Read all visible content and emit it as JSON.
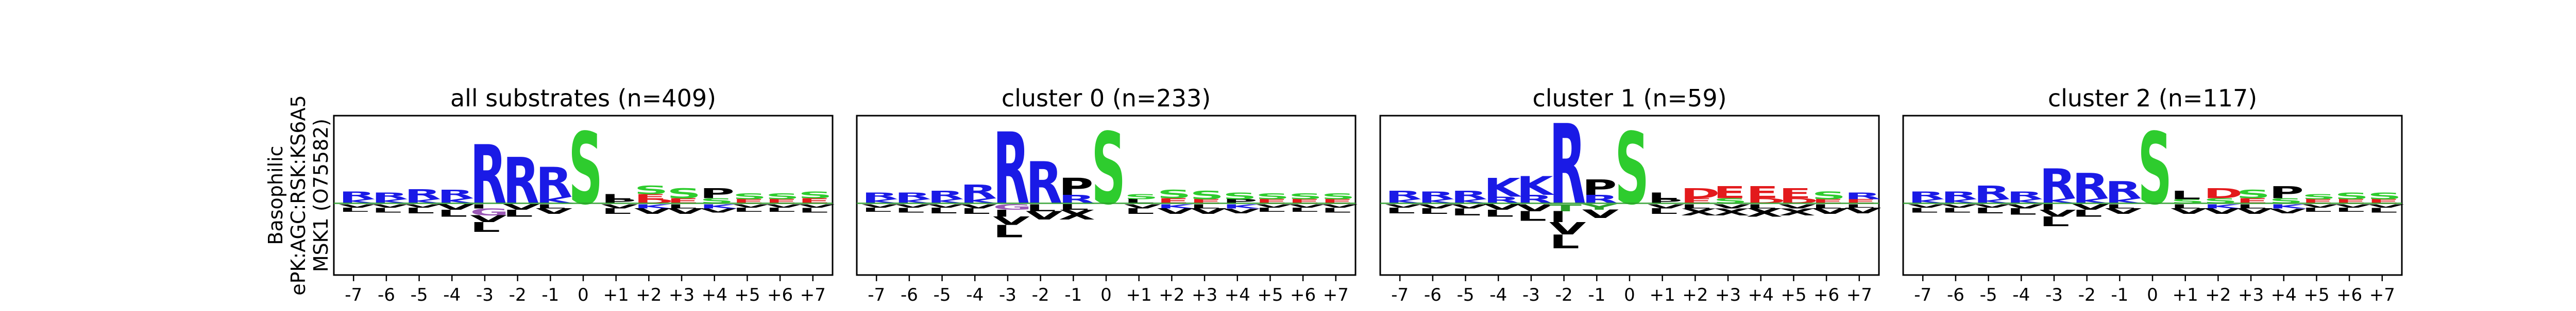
{
  "figure": {
    "row_label": [
      "Basophilic",
      "ePK:AGC:RSK:KS6A5",
      "MSK1 (O75582)"
    ]
  },
  "colors": {
    "basic": "#1a1ae6",
    "acidic": "#e31a1c",
    "polar": "#2ca02c",
    "ser": "#2ecc2e",
    "hydrophobic": "#000000",
    "gly": "#9b59b6",
    "amide": "#8e44ad",
    "baseline": "#2ca02c"
  },
  "chart_data": [
    {
      "type": "sequence-logo",
      "title": "all substrates (n=409)",
      "positions": [
        "-7",
        "-6",
        "-5",
        "-4",
        "-3",
        "-2",
        "-1",
        "0",
        "+1",
        "+2",
        "+3",
        "+4",
        "+5",
        "+6",
        "+7"
      ],
      "ylim": [
        -1.0,
        1.0
      ],
      "top": [
        [
          [
            "R",
            0.09
          ],
          [
            "K",
            0.05
          ]
        ],
        [
          [
            "R",
            0.08
          ],
          [
            "K",
            0.05
          ]
        ],
        [
          [
            "R",
            0.12
          ],
          [
            "K",
            0.05
          ]
        ],
        [
          [
            "R",
            0.1
          ],
          [
            "K",
            0.06
          ]
        ],
        [
          [
            "R",
            0.7
          ]
        ],
        [
          [
            "R",
            0.55
          ]
        ],
        [
          [
            "R",
            0.35
          ],
          [
            "K",
            0.08
          ]
        ],
        [
          [
            "S",
            0.85
          ]
        ],
        [
          [
            "L",
            0.06
          ],
          [
            "P",
            0.05
          ]
        ],
        [
          [
            "S",
            0.1
          ],
          [
            "E",
            0.06
          ],
          [
            "D",
            0.05
          ]
        ],
        [
          [
            "S",
            0.12
          ],
          [
            "E",
            0.06
          ]
        ],
        [
          [
            "P",
            0.12
          ],
          [
            "S",
            0.06
          ]
        ],
        [
          [
            "S",
            0.07
          ],
          [
            "E",
            0.05
          ]
        ],
        [
          [
            "S",
            0.07
          ],
          [
            "E",
            0.05
          ]
        ],
        [
          [
            "S",
            0.08
          ],
          [
            "E",
            0.06
          ]
        ]
      ],
      "bottom": [
        [
          [
            "L",
            0.06
          ],
          [
            "V",
            0.05
          ]
        ],
        [
          [
            "L",
            0.07
          ],
          [
            "V",
            0.05
          ]
        ],
        [
          [
            "L",
            0.08
          ],
          [
            "V",
            0.05
          ]
        ],
        [
          [
            "L",
            0.1
          ],
          [
            "V",
            0.08
          ]
        ],
        [
          [
            "G",
            0.1
          ],
          [
            "L",
            0.14
          ],
          [
            "V",
            0.1
          ],
          [
            "I",
            0.06
          ]
        ],
        [
          [
            "L",
            0.1
          ],
          [
            "V",
            0.08
          ]
        ],
        [
          [
            "V",
            0.08
          ],
          [
            "L",
            0.06
          ]
        ],
        [],
        [
          [
            "L",
            0.08
          ],
          [
            "V",
            0.06
          ]
        ],
        [
          [
            "V",
            0.08
          ],
          [
            "K",
            0.06
          ]
        ],
        [
          [
            "V",
            0.08
          ],
          [
            "L",
            0.06
          ]
        ],
        [
          [
            "K",
            0.06
          ],
          [
            "V",
            0.06
          ]
        ],
        [
          [
            "L",
            0.06
          ],
          [
            "V",
            0.05
          ]
        ],
        [
          [
            "L",
            0.06
          ],
          [
            "V",
            0.05
          ]
        ],
        [
          [
            "L",
            0.07
          ],
          [
            "V",
            0.05
          ]
        ]
      ]
    },
    {
      "type": "sequence-logo",
      "title": "cluster 0 (n=233)",
      "positions": [
        "-7",
        "-6",
        "-5",
        "-4",
        "-3",
        "-2",
        "-1",
        "0",
        "+1",
        "+2",
        "+3",
        "+4",
        "+5",
        "+6",
        "+7"
      ],
      "ylim": [
        -1.0,
        1.0
      ],
      "top": [
        [
          [
            "R",
            0.08
          ],
          [
            "K",
            0.05
          ]
        ],
        [
          [
            "R",
            0.08
          ],
          [
            "K",
            0.05
          ]
        ],
        [
          [
            "R",
            0.1
          ],
          [
            "K",
            0.05
          ]
        ],
        [
          [
            "R",
            0.16
          ],
          [
            "K",
            0.06
          ]
        ],
        [
          [
            "R",
            0.85
          ]
        ],
        [
          [
            "R",
            0.5
          ]
        ],
        [
          [
            "P",
            0.2
          ],
          [
            "R",
            0.1
          ]
        ],
        [
          [
            "S",
            0.85
          ]
        ],
        [
          [
            "S",
            0.06
          ],
          [
            "L",
            0.05
          ]
        ],
        [
          [
            "S",
            0.1
          ],
          [
            "E",
            0.06
          ]
        ],
        [
          [
            "S",
            0.1
          ],
          [
            "E",
            0.05
          ]
        ],
        [
          [
            "S",
            0.08
          ],
          [
            "P",
            0.05
          ]
        ],
        [
          [
            "S",
            0.07
          ],
          [
            "E",
            0.05
          ]
        ],
        [
          [
            "S",
            0.07
          ],
          [
            "E",
            0.05
          ]
        ],
        [
          [
            "S",
            0.07
          ],
          [
            "E",
            0.05
          ]
        ]
      ],
      "bottom": [
        [
          [
            "L",
            0.06
          ],
          [
            "V",
            0.05
          ]
        ],
        [
          [
            "L",
            0.07
          ],
          [
            "V",
            0.05
          ]
        ],
        [
          [
            "L",
            0.08
          ],
          [
            "V",
            0.05
          ]
        ],
        [
          [
            "L",
            0.08
          ],
          [
            "V",
            0.06
          ]
        ],
        [
          [
            "L",
            0.18
          ],
          [
            "V",
            0.12
          ],
          [
            "I",
            0.1
          ],
          [
            "G",
            0.08
          ]
        ],
        [
          [
            "V",
            0.12
          ],
          [
            "L",
            0.1
          ]
        ],
        [
          [
            "X",
            0.14
          ],
          [
            "L",
            0.08
          ]
        ],
        [],
        [
          [
            "L",
            0.08
          ],
          [
            "V",
            0.06
          ]
        ],
        [
          [
            "V",
            0.08
          ],
          [
            "K",
            0.06
          ]
        ],
        [
          [
            "V",
            0.08
          ],
          [
            "L",
            0.06
          ]
        ],
        [
          [
            "V",
            0.07
          ],
          [
            "K",
            0.06
          ]
        ],
        [
          [
            "L",
            0.06
          ],
          [
            "V",
            0.05
          ]
        ],
        [
          [
            "L",
            0.06
          ],
          [
            "V",
            0.05
          ]
        ],
        [
          [
            "L",
            0.07
          ],
          [
            "V",
            0.05
          ]
        ]
      ]
    },
    {
      "type": "sequence-logo",
      "title": "cluster 1 (n=59)",
      "positions": [
        "-7",
        "-6",
        "-5",
        "-4",
        "-3",
        "-2",
        "-1",
        "0",
        "+1",
        "+2",
        "+3",
        "+4",
        "+5",
        "+6",
        "+7"
      ],
      "ylim": [
        -1.0,
        1.0
      ],
      "top": [
        [
          [
            "R",
            0.1
          ],
          [
            "K",
            0.05
          ]
        ],
        [
          [
            "R",
            0.09
          ],
          [
            "K",
            0.05
          ]
        ],
        [
          [
            "R",
            0.1
          ],
          [
            "K",
            0.05
          ]
        ],
        [
          [
            "K",
            0.22
          ],
          [
            "R",
            0.08
          ]
        ],
        [
          [
            "K",
            0.22
          ],
          [
            "R",
            0.1
          ]
        ],
        [
          [
            "R",
            0.95
          ]
        ],
        [
          [
            "P",
            0.18
          ],
          [
            "R",
            0.1
          ]
        ],
        [
          [
            "S",
            0.85
          ]
        ],
        [
          [
            "L",
            0.08
          ],
          [
            "P",
            0.05
          ]
        ],
        [
          [
            "D",
            0.12
          ],
          [
            "E",
            0.06
          ]
        ],
        [
          [
            "E",
            0.14
          ],
          [
            "S",
            0.06
          ]
        ],
        [
          [
            "E",
            0.14
          ],
          [
            "D",
            0.06
          ]
        ],
        [
          [
            "E",
            0.12
          ],
          [
            "D",
            0.06
          ]
        ],
        [
          [
            "S",
            0.09
          ],
          [
            "E",
            0.05
          ]
        ],
        [
          [
            "R",
            0.08
          ],
          [
            "E",
            0.05
          ]
        ]
      ],
      "bottom": [
        [
          [
            "L",
            0.08
          ],
          [
            "V",
            0.05
          ]
        ],
        [
          [
            "L",
            0.08
          ],
          [
            "V",
            0.06
          ]
        ],
        [
          [
            "L",
            0.1
          ],
          [
            "V",
            0.06
          ]
        ],
        [
          [
            "L",
            0.1
          ],
          [
            "V",
            0.08
          ]
        ],
        [
          [
            "L",
            0.14
          ],
          [
            "V",
            0.1
          ]
        ],
        [
          [
            "L",
            0.2
          ],
          [
            "V",
            0.18
          ],
          [
            "I",
            0.16
          ],
          [
            "T",
            0.1
          ]
        ],
        [
          [
            "V",
            0.12
          ],
          [
            "Y",
            0.08
          ]
        ],
        [],
        [
          [
            "L",
            0.08
          ],
          [
            "V",
            0.06
          ]
        ],
        [
          [
            "X",
            0.1
          ],
          [
            "L",
            0.06
          ]
        ],
        [
          [
            "X",
            0.1
          ],
          [
            "V",
            0.06
          ]
        ],
        [
          [
            "X",
            0.12
          ],
          [
            "L",
            0.06
          ]
        ],
        [
          [
            "X",
            0.1
          ],
          [
            "V",
            0.06
          ]
        ],
        [
          [
            "V",
            0.08
          ],
          [
            "L",
            0.06
          ]
        ],
        [
          [
            "V",
            0.08
          ],
          [
            "L",
            0.05
          ]
        ]
      ]
    },
    {
      "type": "sequence-logo",
      "title": "cluster 2 (n=117)",
      "positions": [
        "-7",
        "-6",
        "-5",
        "-4",
        "-3",
        "-2",
        "-1",
        "0",
        "+1",
        "+2",
        "+3",
        "+4",
        "+5",
        "+6",
        "+7"
      ],
      "ylim": [
        -1.0,
        1.0
      ],
      "top": [
        [
          [
            "R",
            0.09
          ],
          [
            "K",
            0.05
          ]
        ],
        [
          [
            "R",
            0.09
          ],
          [
            "K",
            0.05
          ]
        ],
        [
          [
            "R",
            0.16
          ],
          [
            "K",
            0.05
          ]
        ],
        [
          [
            "R",
            0.09
          ],
          [
            "K",
            0.05
          ]
        ],
        [
          [
            "R",
            0.35
          ],
          [
            "K",
            0.06
          ]
        ],
        [
          [
            "R",
            0.3
          ],
          [
            "K",
            0.06
          ]
        ],
        [
          [
            "R",
            0.2
          ],
          [
            "K",
            0.06
          ]
        ],
        [
          [
            "S",
            0.85
          ]
        ],
        [
          [
            "L",
            0.1
          ],
          [
            "S",
            0.05
          ]
        ],
        [
          [
            "D",
            0.12
          ],
          [
            "S",
            0.06
          ]
        ],
        [
          [
            "S",
            0.1
          ],
          [
            "E",
            0.06
          ]
        ],
        [
          [
            "P",
            0.14
          ],
          [
            "S",
            0.06
          ]
        ],
        [
          [
            "S",
            0.06
          ],
          [
            "E",
            0.05
          ]
        ],
        [
          [
            "S",
            0.08
          ],
          [
            "E",
            0.05
          ]
        ],
        [
          [
            "S",
            0.08
          ],
          [
            "E",
            0.05
          ]
        ]
      ],
      "bottom": [
        [
          [
            "L",
            0.07
          ],
          [
            "V",
            0.05
          ]
        ],
        [
          [
            "L",
            0.07
          ],
          [
            "V",
            0.05
          ]
        ],
        [
          [
            "L",
            0.08
          ],
          [
            "V",
            0.05
          ]
        ],
        [
          [
            "L",
            0.09
          ],
          [
            "V",
            0.06
          ]
        ],
        [
          [
            "L",
            0.14
          ],
          [
            "V",
            0.1
          ],
          [
            "I",
            0.08
          ]
        ],
        [
          [
            "L",
            0.1
          ],
          [
            "V",
            0.08
          ]
        ],
        [
          [
            "V",
            0.08
          ],
          [
            "L",
            0.06
          ]
        ],
        [],
        [
          [
            "V",
            0.08
          ],
          [
            "L",
            0.06
          ]
        ],
        [
          [
            "V",
            0.08
          ],
          [
            "K",
            0.06
          ]
        ],
        [
          [
            "V",
            0.08
          ],
          [
            "L",
            0.06
          ]
        ],
        [
          [
            "V",
            0.07
          ],
          [
            "K",
            0.06
          ]
        ],
        [
          [
            "L",
            0.06
          ],
          [
            "V",
            0.05
          ]
        ],
        [
          [
            "L",
            0.06
          ],
          [
            "V",
            0.05
          ]
        ],
        [
          [
            "L",
            0.07
          ],
          [
            "V",
            0.05
          ]
        ]
      ]
    }
  ]
}
